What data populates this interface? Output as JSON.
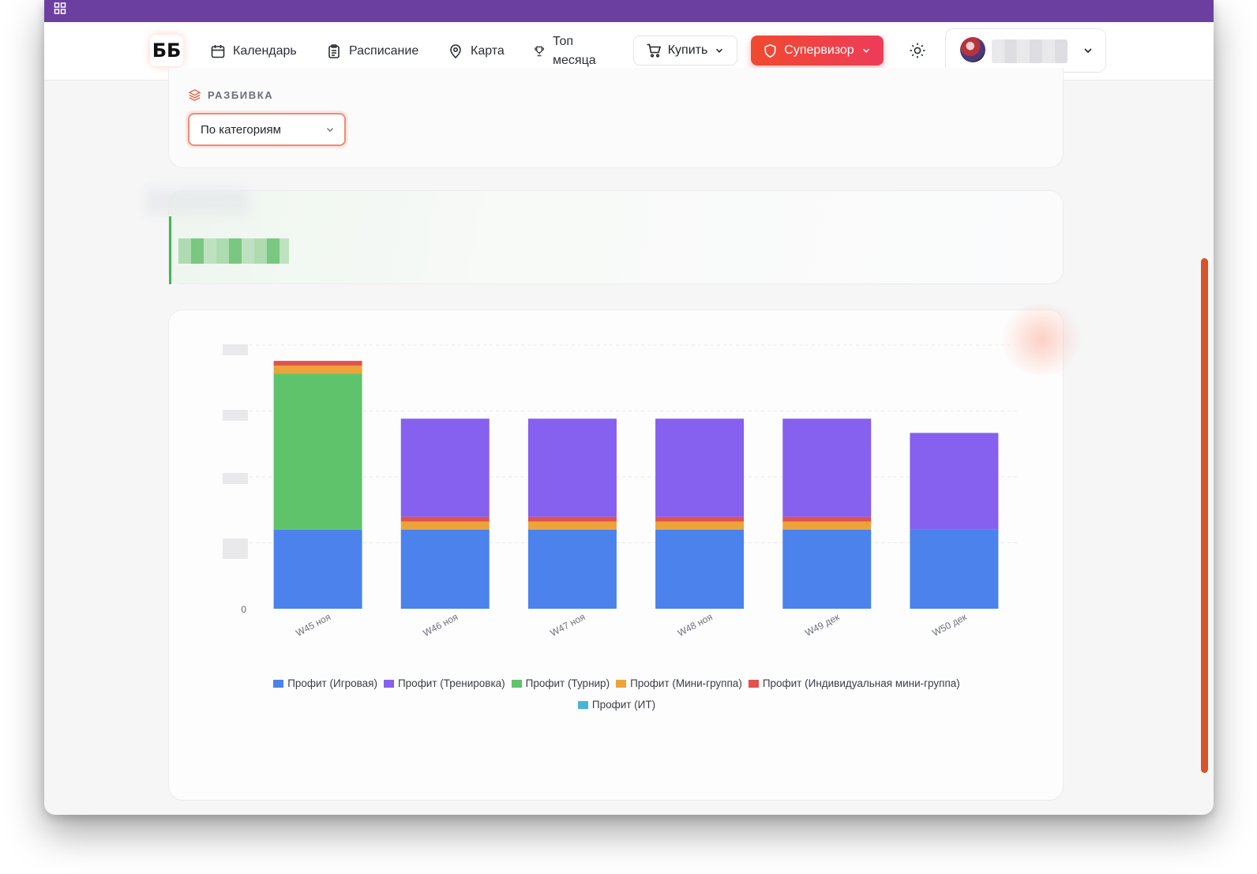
{
  "nav": {
    "logo": "ББ",
    "calendar": "Календарь",
    "schedule": "Расписание",
    "map": "Карта",
    "top_line1": "Топ",
    "top_line2": "месяца",
    "buy": "Купить",
    "supervisor": "Супервизор"
  },
  "filters": {
    "breakdown_label": "РАЗБИВКА",
    "breakdown_value": "По категориям"
  },
  "colors": {
    "topbar": "#6b3fa0",
    "accent": "#ef4b35",
    "summary_bar": "#43b652"
  },
  "chart_data": {
    "type": "bar",
    "stacked": true,
    "categories": [
      "W45 ноя",
      "W46 ноя",
      "W47 ноя",
      "W48 ноя",
      "W49 дек",
      "W50 дек"
    ],
    "y_tick_labels": [
      "0"
    ],
    "grid": true,
    "legend_position": "bottom",
    "series": [
      {
        "name": "Профит (Игровая)",
        "color": "#4c82ec",
        "values": [
          100,
          100,
          100,
          100,
          100,
          100
        ]
      },
      {
        "name": "Профит (Тренировка)",
        "color": "#8660ee",
        "values": [
          0,
          124,
          124,
          124,
          124,
          122
        ]
      },
      {
        "name": "Профит (Турнир)",
        "color": "#5fc36b",
        "values": [
          197,
          0,
          0,
          0,
          0,
          0
        ]
      },
      {
        "name": "Профит (Мини-группа)",
        "color": "#eca43a",
        "values": [
          10,
          10,
          10,
          10,
          10,
          0
        ]
      },
      {
        "name": "Профит (Индивидуальная мини-группа)",
        "color": "#e1524e",
        "values": [
          6,
          6,
          6,
          6,
          6,
          0
        ]
      },
      {
        "name": "Профит (ИТ)",
        "color": "#4ab4d6",
        "values": [
          0,
          0,
          0,
          0,
          0,
          0
        ]
      }
    ],
    "ylim": [
      0,
      333
    ]
  }
}
